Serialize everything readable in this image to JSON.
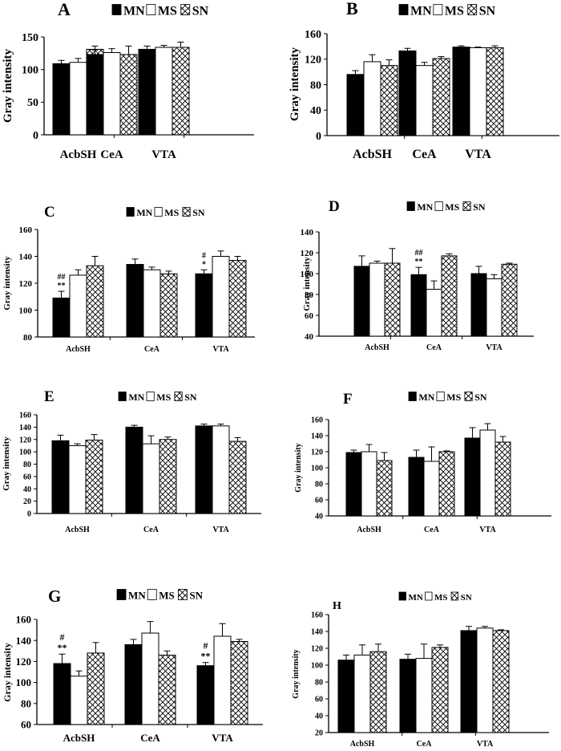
{
  "figure": {
    "series_names": [
      "MN",
      "MS",
      "SN"
    ],
    "categories": [
      "AcbSH",
      "CeA",
      "VTA"
    ],
    "y_axis_label": "Gray intensity"
  },
  "chart_data": [
    {
      "id": "A",
      "type": "bar",
      "title": "A",
      "categories": [
        "AcbSH",
        "CeA",
        "VTA"
      ],
      "ylabel": "Gray intensity",
      "ylim": [
        0,
        150
      ],
      "yticks": [
        0,
        50,
        100,
        150
      ],
      "series": [
        {
          "name": "MN",
          "values": [
            109,
            123,
            131
          ],
          "errors": [
            5,
            7,
            5
          ]
        },
        {
          "name": "MS",
          "values": [
            111,
            126,
            134
          ],
          "errors": [
            6,
            6,
            3
          ]
        },
        {
          "name": "SN",
          "values": [
            131,
            123,
            134
          ],
          "errors": [
            5,
            13,
            8
          ]
        }
      ],
      "annotations": []
    },
    {
      "id": "B",
      "type": "bar",
      "title": "B",
      "categories": [
        "AcbSH",
        "CeA",
        "VTA"
      ],
      "ylabel": "Gray intensity",
      "ylim": [
        0,
        160
      ],
      "yticks": [
        0,
        40,
        80,
        120,
        160
      ],
      "series": [
        {
          "name": "MN",
          "values": [
            96,
            133,
            139
          ],
          "errors": [
            6,
            4,
            2
          ]
        },
        {
          "name": "MS",
          "values": [
            116,
            110,
            138
          ],
          "errors": [
            11,
            5,
            1
          ]
        },
        {
          "name": "SN",
          "values": [
            110,
            121,
            138
          ],
          "errors": [
            9,
            3,
            3
          ]
        }
      ],
      "annotations": []
    },
    {
      "id": "C",
      "type": "bar",
      "title": "C",
      "categories": [
        "AcbSH",
        "CeA",
        "VTA"
      ],
      "ylabel": "Gray intensity",
      "ylim": [
        80,
        160
      ],
      "yticks": [
        80,
        100,
        120,
        140,
        160
      ],
      "series": [
        {
          "name": "MN",
          "values": [
            109,
            134,
            127
          ],
          "errors": [
            5,
            4,
            3
          ]
        },
        {
          "name": "MS",
          "values": [
            126,
            130,
            140
          ],
          "errors": [
            4,
            2,
            4
          ]
        },
        {
          "name": "SN",
          "values": [
            133,
            127,
            137
          ],
          "errors": [
            7,
            2,
            3
          ]
        }
      ],
      "annotations": [
        {
          "category_index": 0,
          "series_index": 0,
          "lines": [
            "##",
            "**"
          ]
        },
        {
          "category_index": 2,
          "series_index": 0,
          "lines": [
            "#",
            "*"
          ]
        }
      ]
    },
    {
      "id": "D",
      "type": "bar",
      "title": "D",
      "categories": [
        "AcbSH",
        "CeA",
        "VTA"
      ],
      "ylabel": "Gray intensity",
      "ylim": [
        40,
        140
      ],
      "yticks": [
        40,
        60,
        80,
        100,
        120,
        140
      ],
      "series": [
        {
          "name": "MN",
          "values": [
            107,
            99,
            100
          ],
          "errors": [
            10,
            7,
            7
          ]
        },
        {
          "name": "MS",
          "values": [
            110,
            85,
            95
          ],
          "errors": [
            2,
            8,
            4
          ]
        },
        {
          "name": "SN",
          "values": [
            110,
            117,
            109
          ],
          "errors": [
            14,
            2,
            1
          ]
        }
      ],
      "annotations": [
        {
          "category_index": 1,
          "series_index": 0,
          "lines": [
            "##",
            "**"
          ]
        }
      ]
    },
    {
      "id": "E",
      "type": "bar",
      "title": "E",
      "categories": [
        "AcbSH",
        "CeA",
        "VTA"
      ],
      "ylabel": "Gray intensity",
      "ylim": [
        0,
        160
      ],
      "yticks": [
        0,
        20,
        40,
        60,
        80,
        100,
        120,
        140,
        160
      ],
      "series": [
        {
          "name": "MN",
          "values": [
            118,
            140,
            142
          ],
          "errors": [
            9,
            3,
            3
          ]
        },
        {
          "name": "MS",
          "values": [
            110,
            113,
            142
          ],
          "errors": [
            3,
            13,
            3
          ]
        },
        {
          "name": "SN",
          "values": [
            119,
            120,
            117
          ],
          "errors": [
            9,
            4,
            6
          ]
        }
      ],
      "annotations": []
    },
    {
      "id": "F",
      "type": "bar",
      "title": "F",
      "categories": [
        "AcbSH",
        "CeA",
        "VTA"
      ],
      "ylabel": "Gray intensity",
      "ylim": [
        40,
        160
      ],
      "yticks": [
        40,
        60,
        80,
        100,
        120,
        140,
        160
      ],
      "series": [
        {
          "name": "MN",
          "values": [
            119,
            113,
            137
          ],
          "errors": [
            3,
            9,
            13
          ]
        },
        {
          "name": "MS",
          "values": [
            120,
            108,
            147
          ],
          "errors": [
            9,
            18,
            8
          ]
        },
        {
          "name": "SN",
          "values": [
            109,
            120,
            132
          ],
          "errors": [
            10,
            1,
            7
          ]
        }
      ],
      "annotations": []
    },
    {
      "id": "G",
      "type": "bar",
      "title": "G",
      "categories": [
        "AcbSH",
        "CeA",
        "VTA"
      ],
      "ylabel": "Gray intensity",
      "ylim": [
        60,
        160
      ],
      "yticks": [
        60,
        80,
        100,
        120,
        140,
        160
      ],
      "series": [
        {
          "name": "MN",
          "values": [
            118,
            136,
            116
          ],
          "errors": [
            9,
            5,
            3
          ]
        },
        {
          "name": "MS",
          "values": [
            106,
            147,
            144
          ],
          "errors": [
            5,
            11,
            12
          ]
        },
        {
          "name": "SN",
          "values": [
            128,
            126,
            139
          ],
          "errors": [
            10,
            4,
            2
          ]
        }
      ],
      "annotations": [
        {
          "category_index": 0,
          "series_index": 0,
          "lines": [
            "#",
            "**"
          ]
        },
        {
          "category_index": 2,
          "series_index": 0,
          "lines": [
            "#",
            "**"
          ]
        }
      ]
    },
    {
      "id": "H",
      "type": "bar",
      "title": "H",
      "categories": [
        "AcbSH",
        "CeA",
        "VTA"
      ],
      "ylabel": "Gray intensity",
      "ylim": [
        20,
        160
      ],
      "yticks": [
        20,
        40,
        60,
        80,
        100,
        120,
        140,
        160
      ],
      "series": [
        {
          "name": "MN",
          "values": [
            106,
            107,
            141
          ],
          "errors": [
            6,
            6,
            5
          ]
        },
        {
          "name": "MS",
          "values": [
            112,
            108,
            144
          ],
          "errors": [
            12,
            17,
            2
          ]
        },
        {
          "name": "SN",
          "values": [
            116,
            121,
            141
          ],
          "errors": [
            9,
            3,
            1
          ]
        }
      ],
      "annotations": []
    }
  ]
}
